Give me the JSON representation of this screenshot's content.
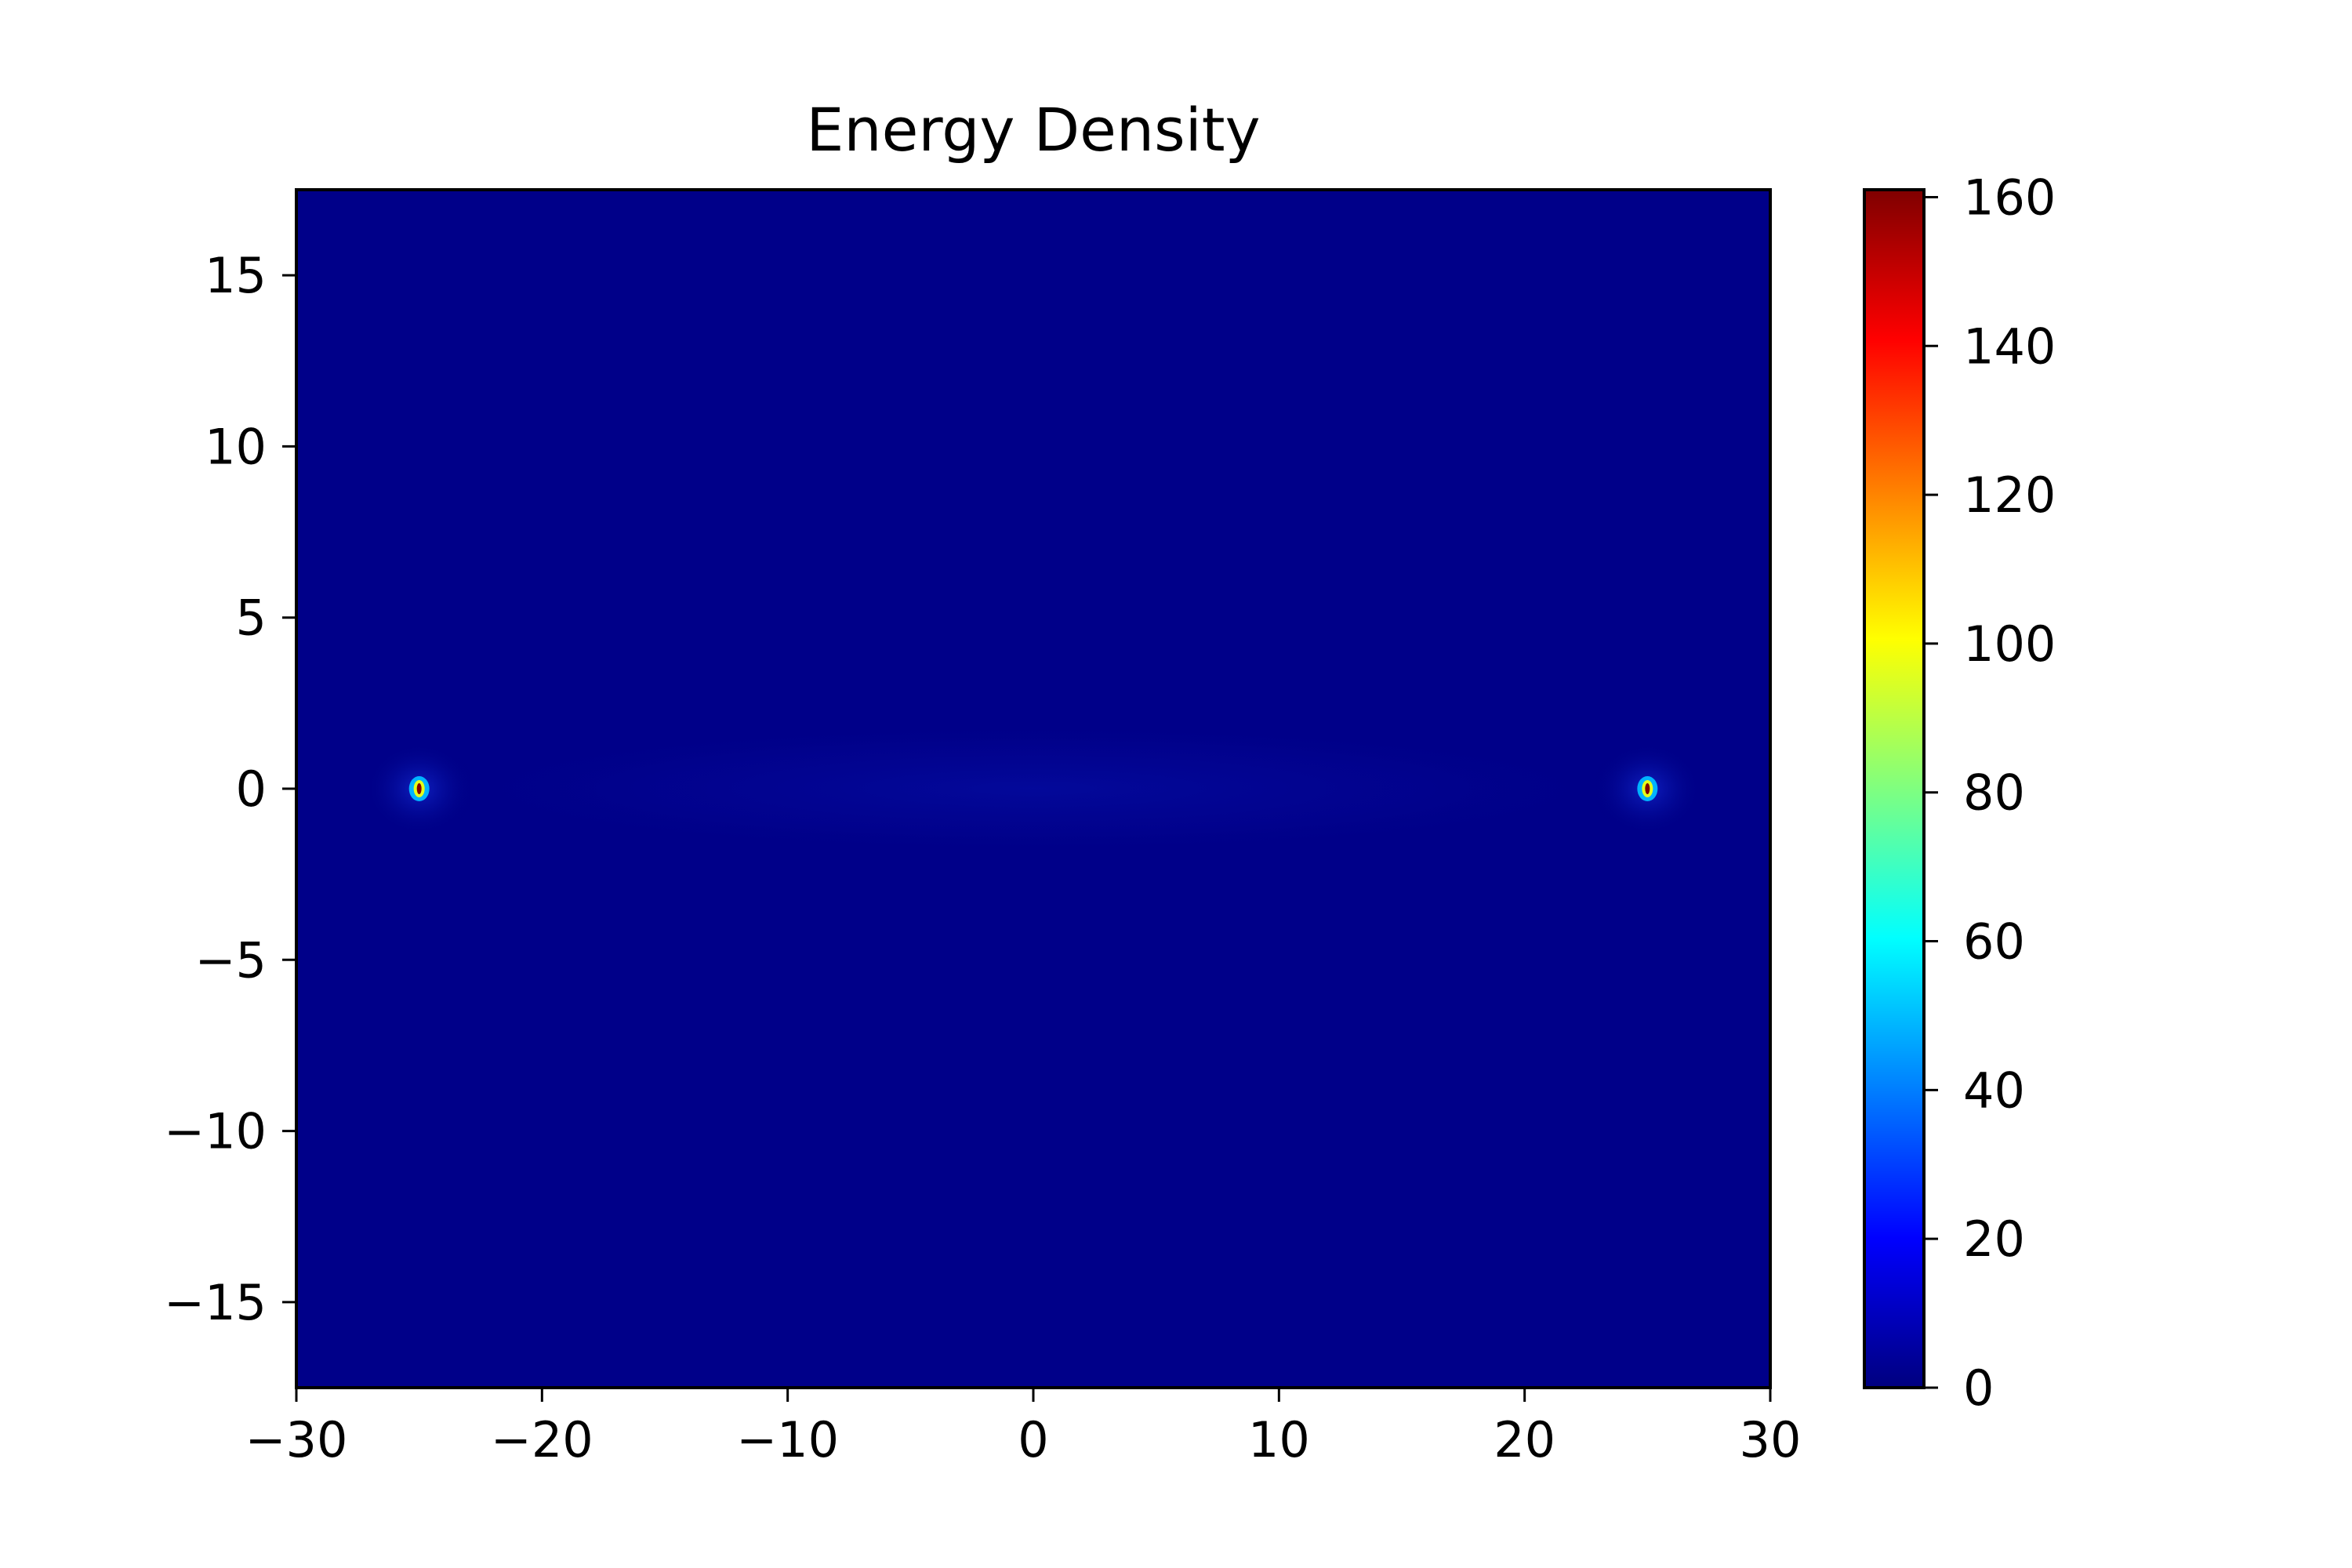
{
  "chart_data": {
    "type": "heatmap",
    "title": "Energy Density",
    "xlabel": "",
    "ylabel": "",
    "xlim": [
      -30,
      30
    ],
    "ylim": [
      -17.5,
      17.5
    ],
    "x_ticks": [
      -30,
      -20,
      -10,
      0,
      10,
      20,
      30
    ],
    "x_tick_labels": [
      "−30",
      "−20",
      "−10",
      "0",
      "10",
      "20",
      "30"
    ],
    "y_ticks": [
      15,
      10,
      5,
      0,
      -5,
      -10,
      -15
    ],
    "y_tick_labels": [
      "15",
      "10",
      "5",
      "0",
      "−5",
      "−10",
      "−15"
    ],
    "colormap": "jet",
    "colorbar": {
      "vmin": 0,
      "vmax": 161,
      "ticks": [
        0,
        20,
        40,
        60,
        80,
        100,
        120,
        140,
        160
      ],
      "tick_labels": [
        "0",
        "20",
        "40",
        "60",
        "80",
        "100",
        "120",
        "140",
        "160"
      ]
    },
    "background_value": 1.5,
    "band": {
      "y": 0,
      "x_range": [
        -25,
        25
      ],
      "value": 8
    },
    "hotspots": [
      {
        "x": -25,
        "y": 0,
        "value": 161
      },
      {
        "x": 25,
        "y": 0,
        "value": 161
      }
    ],
    "grid": false
  }
}
